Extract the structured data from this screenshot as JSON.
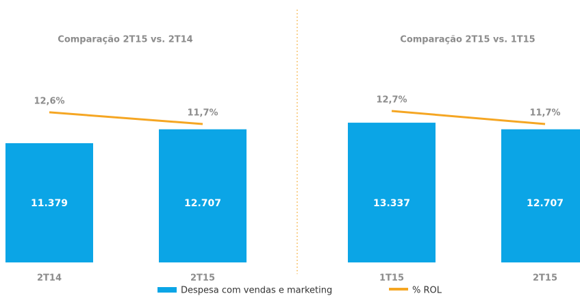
{
  "chart_data": [
    {
      "type": "bar-line",
      "title": "Comparação 2T15 vs. 2T14",
      "categories": [
        "2T14",
        "2T15"
      ],
      "series": [
        {
          "color": "#0ba5e6",
          "values": [
            11379,
            12707
          ],
          "value_labels": [
            "11.379",
            "12.707"
          ]
        },
        {
          "color": "#f5a623",
          "values": [
            12.6,
            11.7
          ],
          "value_labels": [
            "12,6%",
            "11,7%"
          ]
        }
      ]
    },
    {
      "type": "bar-line",
      "title": "Comparação 2T15 vs. 1T15",
      "categories": [
        "1T15",
        "2T15"
      ],
      "series": [
        {
          "color": "#0ba5e6",
          "values": [
            13337,
            12707
          ],
          "value_labels": [
            "13.337",
            "12.707"
          ]
        },
        {
          "color": "#f5a623",
          "values": [
            12.7,
            11.7
          ],
          "value_labels": [
            "12,7%",
            "11,7%"
          ]
        }
      ]
    }
  ],
  "legend": [
    {
      "name": "Despesa com vendas e marketing",
      "color": "#0ba5e6"
    },
    {
      "name": "% ROL",
      "color": "#f5a623"
    }
  ]
}
